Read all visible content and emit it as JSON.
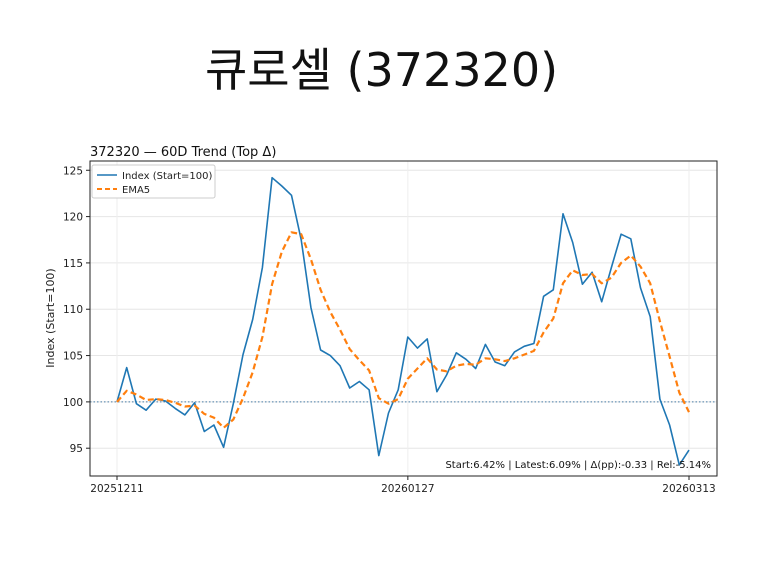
{
  "slide": {
    "title": "큐로셀 (372320)"
  },
  "chart_data": {
    "type": "line",
    "title": "372320 — 60D Trend (Top Δ)",
    "xlabel": "",
    "ylabel": "Index (Start=100)",
    "ylim": [
      92,
      126
    ],
    "yticks": [
      95,
      100,
      105,
      110,
      115,
      120,
      125
    ],
    "x_ticks": [
      {
        "index": 0,
        "label": "20251211"
      },
      {
        "index": 30,
        "label": "20260127"
      },
      {
        "index": 59,
        "label": "20260313"
      }
    ],
    "baseline": 100,
    "grid": true,
    "legend_position": "top-left",
    "series": [
      {
        "name": "Index (Start=100)",
        "color": "#1f77b4",
        "style": "solid",
        "values": [
          100,
          103.7,
          99.8,
          99.1,
          100.3,
          100.1,
          99.3,
          98.6,
          99.9,
          96.8,
          97.5,
          95.1,
          99.8,
          105.1,
          108.9,
          114.5,
          124.2,
          123.3,
          122.3,
          117.5,
          110.2,
          105.6,
          105.0,
          103.9,
          101.5,
          102.2,
          101.3,
          94.2,
          98.8,
          101.3,
          107.0,
          105.8,
          106.8,
          101.1,
          102.9,
          105.3,
          104.6,
          103.6,
          106.2,
          104.3,
          103.9,
          105.4,
          106.0,
          106.3,
          111.4,
          112.1,
          120.3,
          117.2,
          112.7,
          114.0,
          110.8,
          114.5,
          118.1,
          117.6,
          112.3,
          109.2,
          100.3,
          97.5,
          93.2,
          94.8
        ]
      },
      {
        "name": "EMA5",
        "color": "#ff7f0e",
        "style": "dashed",
        "values": [
          100,
          101.2,
          100.8,
          100.2,
          100.3,
          100.2,
          99.9,
          99.5,
          99.6,
          98.7,
          98.3,
          97.2,
          98.1,
          100.4,
          103.2,
          107.0,
          112.7,
          116.2,
          118.3,
          118.1,
          115.4,
          112.1,
          109.7,
          107.8,
          105.7,
          104.5,
          103.4,
          100.4,
          99.8,
          100.3,
          102.5,
          103.6,
          104.7,
          103.5,
          103.3,
          103.9,
          104.1,
          104.0,
          104.7,
          104.6,
          104.4,
          104.7,
          105.1,
          105.5,
          107.5,
          109.0,
          112.8,
          114.2,
          113.7,
          113.8,
          112.8,
          113.4,
          115.0,
          115.8,
          114.6,
          112.8,
          108.7,
          104.9,
          101.0,
          98.9
        ]
      }
    ],
    "annotation": "Start:6.42% | Latest:6.09% | Δ(pp):-0.33 | Rel:-5.14%"
  }
}
